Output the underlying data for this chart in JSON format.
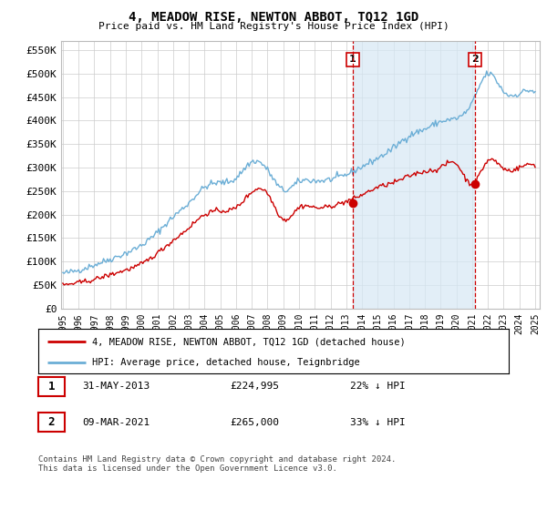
{
  "title": "4, MEADOW RISE, NEWTON ABBOT, TQ12 1GD",
  "subtitle": "Price paid vs. HM Land Registry's House Price Index (HPI)",
  "ylabel_ticks": [
    "£0",
    "£50K",
    "£100K",
    "£150K",
    "£200K",
    "£250K",
    "£300K",
    "£350K",
    "£400K",
    "£450K",
    "£500K",
    "£550K"
  ],
  "ytick_values": [
    0,
    50000,
    100000,
    150000,
    200000,
    250000,
    300000,
    350000,
    400000,
    450000,
    500000,
    550000
  ],
  "ylim": [
    0,
    570000
  ],
  "hpi_color": "#6baed6",
  "hpi_fill_color": "#d6e8f5",
  "price_color": "#cc0000",
  "marker1_date": 2013.42,
  "marker2_date": 2021.18,
  "marker1_price": 224995,
  "marker2_price": 265000,
  "legend_label_price": "4, MEADOW RISE, NEWTON ABBOT, TQ12 1GD (detached house)",
  "legend_label_hpi": "HPI: Average price, detached house, Teignbridge",
  "table_row1": [
    "1",
    "31-MAY-2013",
    "£224,995",
    "22% ↓ HPI"
  ],
  "table_row2": [
    "2",
    "09-MAR-2021",
    "£265,000",
    "33% ↓ HPI"
  ],
  "footer": "Contains HM Land Registry data © Crown copyright and database right 2024.\nThis data is licensed under the Open Government Licence v3.0.",
  "background_color": "#ffffff",
  "grid_color": "#cccccc",
  "hpi_keypoints_x": [
    1995,
    1996,
    1997,
    1998,
    1999,
    2000,
    2001,
    2002,
    2003,
    2004,
    2005,
    2006,
    2007,
    2008,
    2009,
    2010,
    2011,
    2012,
    2013,
    2014,
    2015,
    2016,
    2017,
    2018,
    2019,
    2020,
    2021,
    2022,
    2023,
    2024,
    2025
  ],
  "hpi_keypoints_y": [
    75000,
    82000,
    93000,
    105000,
    118000,
    135000,
    162000,
    195000,
    225000,
    258000,
    268000,
    278000,
    312000,
    295000,
    252000,
    270000,
    272000,
    275000,
    285000,
    302000,
    320000,
    342000,
    368000,
    382000,
    398000,
    405000,
    438000,
    500000,
    462000,
    458000,
    460000
  ],
  "price_keypoints_x": [
    1995,
    1996,
    1997,
    1998,
    1999,
    2000,
    2001,
    2002,
    2003,
    2004,
    2005,
    2006,
    2007,
    2008,
    2009,
    2010,
    2011,
    2012,
    2013,
    2014,
    2015,
    2016,
    2017,
    2018,
    2019,
    2020,
    2021,
    2022,
    2023,
    2024,
    2025
  ],
  "price_keypoints_y": [
    50000,
    55000,
    62000,
    72000,
    82000,
    95000,
    118000,
    145000,
    172000,
    200000,
    208000,
    215000,
    248000,
    245000,
    190000,
    215000,
    215000,
    218000,
    228000,
    242000,
    258000,
    268000,
    282000,
    292000,
    300000,
    308000,
    265000,
    315000,
    298000,
    300000,
    305000
  ],
  "noise_seed": 42
}
